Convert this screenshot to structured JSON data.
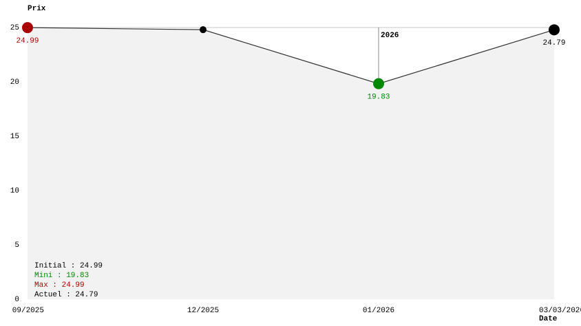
{
  "chart_data": {
    "type": "line",
    "y_label": "Prix",
    "x_label": "Date",
    "categories": [
      "09/2025",
      "12/2025",
      "01/2026",
      "03/03/2026"
    ],
    "values": [
      24.99,
      24.8,
      19.83,
      24.79
    ],
    "value_labels": [
      "24.99",
      null,
      "19.83",
      "24.79"
    ],
    "point_colors": [
      "#aa0000",
      "#000000",
      "#008800",
      "#000000"
    ],
    "line_color": "#333333",
    "area_color": "#f2f2f2",
    "ylim": [
      0,
      25
    ],
    "yticks": [
      0,
      5,
      10,
      15,
      20,
      25
    ],
    "marker_label": "2026",
    "marker_category": "01/2026",
    "legend": [
      {
        "text": "Initial : 24.99",
        "color": "#000000"
      },
      {
        "text": "Mini : 19.83",
        "color": "#008800"
      },
      {
        "text": "Max : 24.99",
        "color": "#aa0000"
      },
      {
        "text": "Actuel : 24.79",
        "color": "#000000"
      }
    ]
  }
}
